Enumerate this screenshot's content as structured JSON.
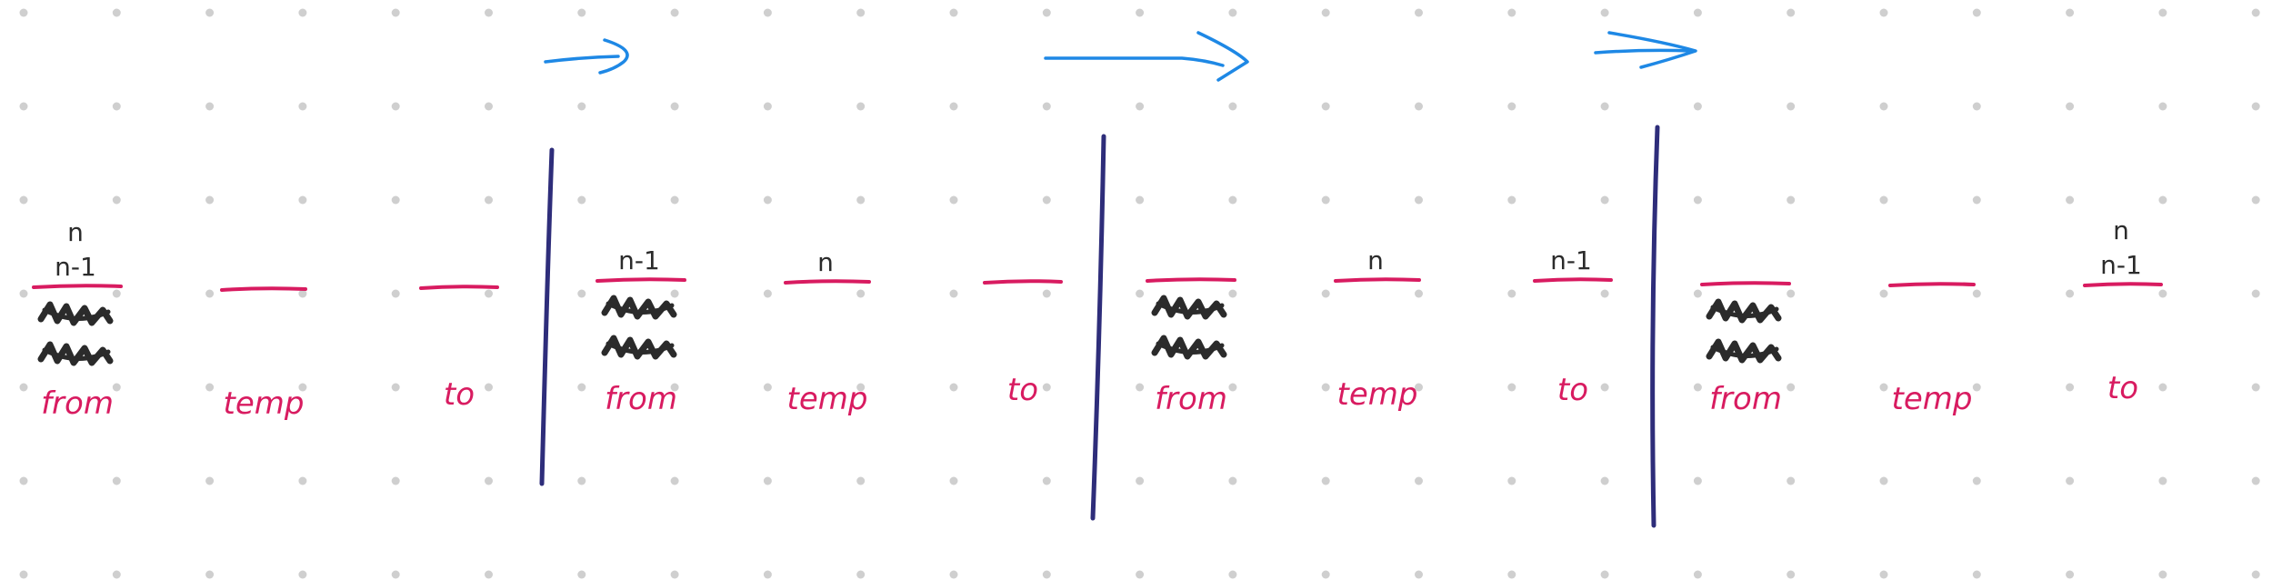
{
  "colors": {
    "background": "#ffffff",
    "grid_dot": "#cfcfcf",
    "peg_line": "#d81b60",
    "peg_label": "#d81b60",
    "disk_text": "#2b2b2b",
    "scribble": "#2b2b2b",
    "divider": "#2e2d7a",
    "arrow": "#1e88e5"
  },
  "panels": [
    {
      "pegs": [
        {
          "label": "from",
          "disks": [
            "n",
            "n-1"
          ],
          "scribbles": 2
        },
        {
          "label": "temp",
          "disks": [],
          "scribbles": 0
        },
        {
          "label": "to",
          "disks": [],
          "scribbles": 0
        }
      ]
    },
    {
      "pegs": [
        {
          "label": "from",
          "disks": [
            "n-1"
          ],
          "scribbles": 2
        },
        {
          "label": "temp",
          "disks": [
            "n"
          ],
          "scribbles": 0
        },
        {
          "label": "to",
          "disks": [],
          "scribbles": 0
        }
      ]
    },
    {
      "pegs": [
        {
          "label": "from",
          "disks": [],
          "scribbles": 2
        },
        {
          "label": "temp",
          "disks": [
            "n"
          ],
          "scribbles": 0
        },
        {
          "label": "to",
          "disks": [
            "n-1"
          ],
          "scribbles": 0
        }
      ]
    },
    {
      "pegs": [
        {
          "label": "from",
          "disks": [],
          "scribbles": 2
        },
        {
          "label": "temp",
          "disks": [],
          "scribbles": 0
        },
        {
          "label": "to",
          "disks": [
            "n",
            "n-1"
          ],
          "scribbles": 0
        }
      ]
    }
  ],
  "arrows": [
    "move-arrow",
    "move-arrow",
    "move-arrow"
  ],
  "dividers": 3
}
